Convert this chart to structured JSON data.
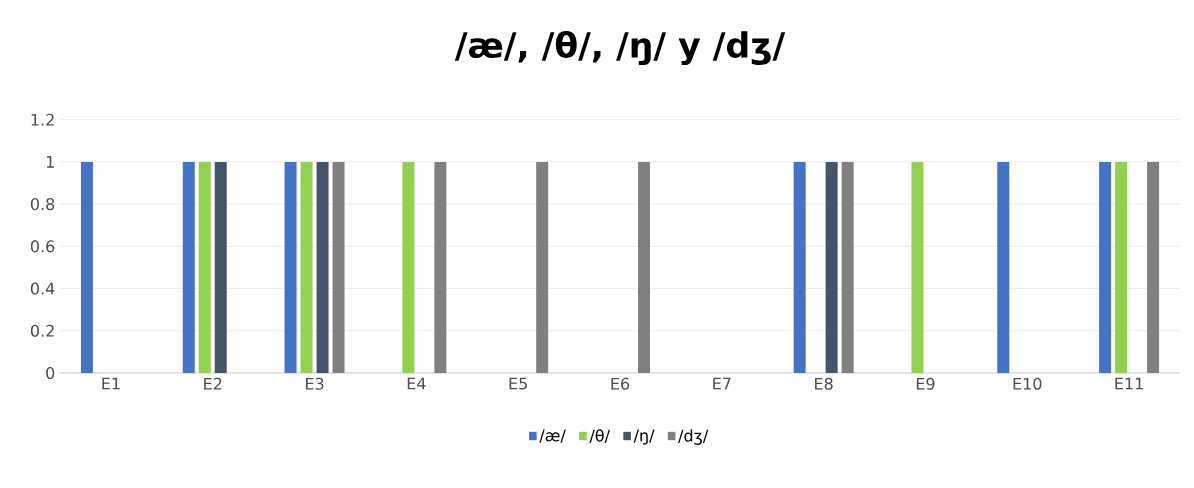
{
  "chart_data": {
    "type": "bar",
    "title": "/æ/, /θ/, /ŋ/ y /dʒ/",
    "categories": [
      "E1",
      "E2",
      "E3",
      "E4",
      "E5",
      "E6",
      "E7",
      "E8",
      "E9",
      "E10",
      "E11"
    ],
    "series": [
      {
        "name": "/æ/",
        "color": "#4472c4",
        "values": [
          1,
          1,
          1,
          0,
          0,
          0,
          0,
          1,
          0,
          1,
          1
        ]
      },
      {
        "name": "/θ/",
        "color": "#92d050",
        "values": [
          0,
          1,
          1,
          1,
          0,
          0,
          0,
          0,
          1,
          0,
          1
        ]
      },
      {
        "name": "/ŋ/",
        "color": "#44546a",
        "values": [
          0,
          1,
          1,
          0,
          0,
          0,
          0,
          1,
          0,
          0,
          0
        ]
      },
      {
        "name": "/dʒ/",
        "color": "#808080",
        "values": [
          0,
          0,
          1,
          1,
          1,
          1,
          0,
          1,
          0,
          0,
          1
        ]
      }
    ],
    "ylim": [
      0,
      1.2
    ],
    "yticks": [
      0,
      0.2,
      0.4,
      0.6,
      0.8,
      1,
      1.2
    ],
    "grid": "y",
    "legend": "bottom"
  }
}
